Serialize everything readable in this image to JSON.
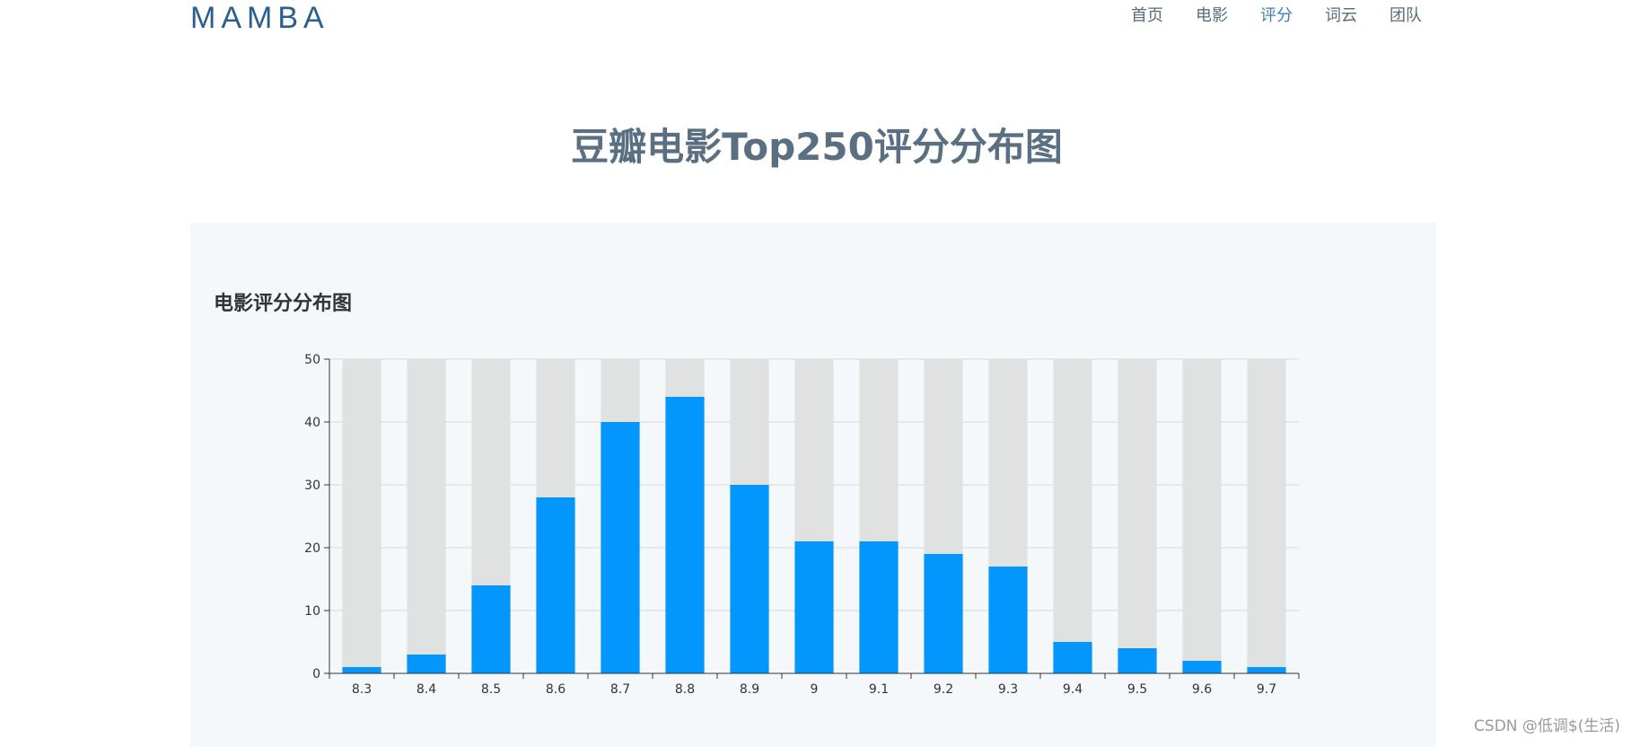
{
  "header": {
    "brand": "MAMBA",
    "nav": [
      {
        "label": "首页",
        "active": false
      },
      {
        "label": "电影",
        "active": false
      },
      {
        "label": "评分",
        "active": true
      },
      {
        "label": "词云",
        "active": false
      },
      {
        "label": "团队",
        "active": false
      }
    ]
  },
  "page": {
    "title": "豆瓣电影Top250评分分布图"
  },
  "chart_data": {
    "type": "bar",
    "title": "电影评分分布图",
    "xlabel": "",
    "ylabel": "",
    "categories": [
      "8.3",
      "8.4",
      "8.5",
      "8.6",
      "8.7",
      "8.8",
      "8.9",
      "9",
      "9.1",
      "9.2",
      "9.3",
      "9.4",
      "9.5",
      "9.6",
      "9.7"
    ],
    "values": [
      1,
      3,
      14,
      28,
      40,
      44,
      30,
      21,
      21,
      19,
      17,
      5,
      4,
      2,
      1
    ],
    "ylim": [
      0,
      50
    ],
    "yticks": [
      0,
      10,
      20,
      30,
      40,
      50
    ],
    "grid": true,
    "background_bars": true,
    "colors": {
      "bar": "#0396fd",
      "background_bar": "#e0e1e1",
      "grid": "#d5d9dd",
      "axis": "#333333"
    }
  },
  "watermark": "CSDN @低调$(生活)"
}
